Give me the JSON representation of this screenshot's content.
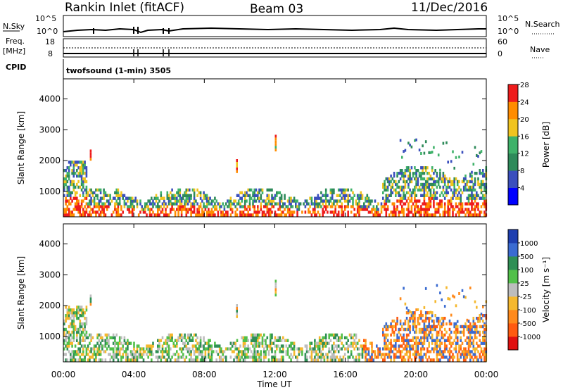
{
  "header": {
    "station": "Rankin Inlet (fitACF)",
    "beam": "Beam 03",
    "date": "11/Dec/2016"
  },
  "top_panel": {
    "nsky_label": "N.Sky",
    "nsearch_label": "N.Search",
    "scale_top": "10^5",
    "scale_bottom": "10^0",
    "freq_label": "Freq.",
    "freq_unit": "[MHz]",
    "freq_top": "18",
    "freq_bottom": "8",
    "nave_top": "60",
    "nave_bottom": "0",
    "nave_label": "Nave",
    "cpid_label": "CPID",
    "cpid_text": "twofsound (1-min) 3505"
  },
  "chart_data": [
    {
      "type": "heatmap",
      "name": "power-panel",
      "ylabel": "Slant Range [km]",
      "xlabel": "Time UT",
      "xlim": [
        0,
        24
      ],
      "ylim": [
        180,
        4650
      ],
      "x_ticks": [
        "00:00",
        "04:00",
        "08:00",
        "12:00",
        "16:00",
        "20:00",
        "00:00"
      ],
      "y_ticks": [
        1000,
        2000,
        3000,
        4000
      ],
      "colorbar": {
        "label": "Power [dB]",
        "ticks": [
          "4",
          "8",
          "12",
          "16",
          "20",
          "24",
          "28"
        ],
        "colors": [
          "#0000ff",
          "#3a4fbd",
          "#2e8a5a",
          "#3fb26a",
          "#f0c420",
          "#ff8c00",
          "#ee1c1c"
        ]
      }
    },
    {
      "type": "heatmap",
      "name": "velocity-panel",
      "ylabel": "Slant Range [km]",
      "xlabel": "Time UT",
      "xlim": [
        0,
        24
      ],
      "ylim": [
        180,
        4650
      ],
      "x_ticks": [
        "00:00",
        "04:00",
        "08:00",
        "12:00",
        "16:00",
        "20:00",
        "00:00"
      ],
      "y_ticks": [
        1000,
        2000,
        3000,
        4000
      ],
      "colorbar": {
        "label": "Velocity [m s⁻¹]",
        "ticks": [
          "1000",
          "500",
          "100",
          "25",
          "-25",
          "-100",
          "-500",
          "-1000"
        ],
        "colors": [
          "#1e3fb0",
          "#3a6bd1",
          "#2f8f55",
          "#52c04a",
          "#bdbdbd",
          "#f5b82e",
          "#ff8a1c",
          "#ff5a10",
          "#e01010"
        ]
      }
    }
  ]
}
